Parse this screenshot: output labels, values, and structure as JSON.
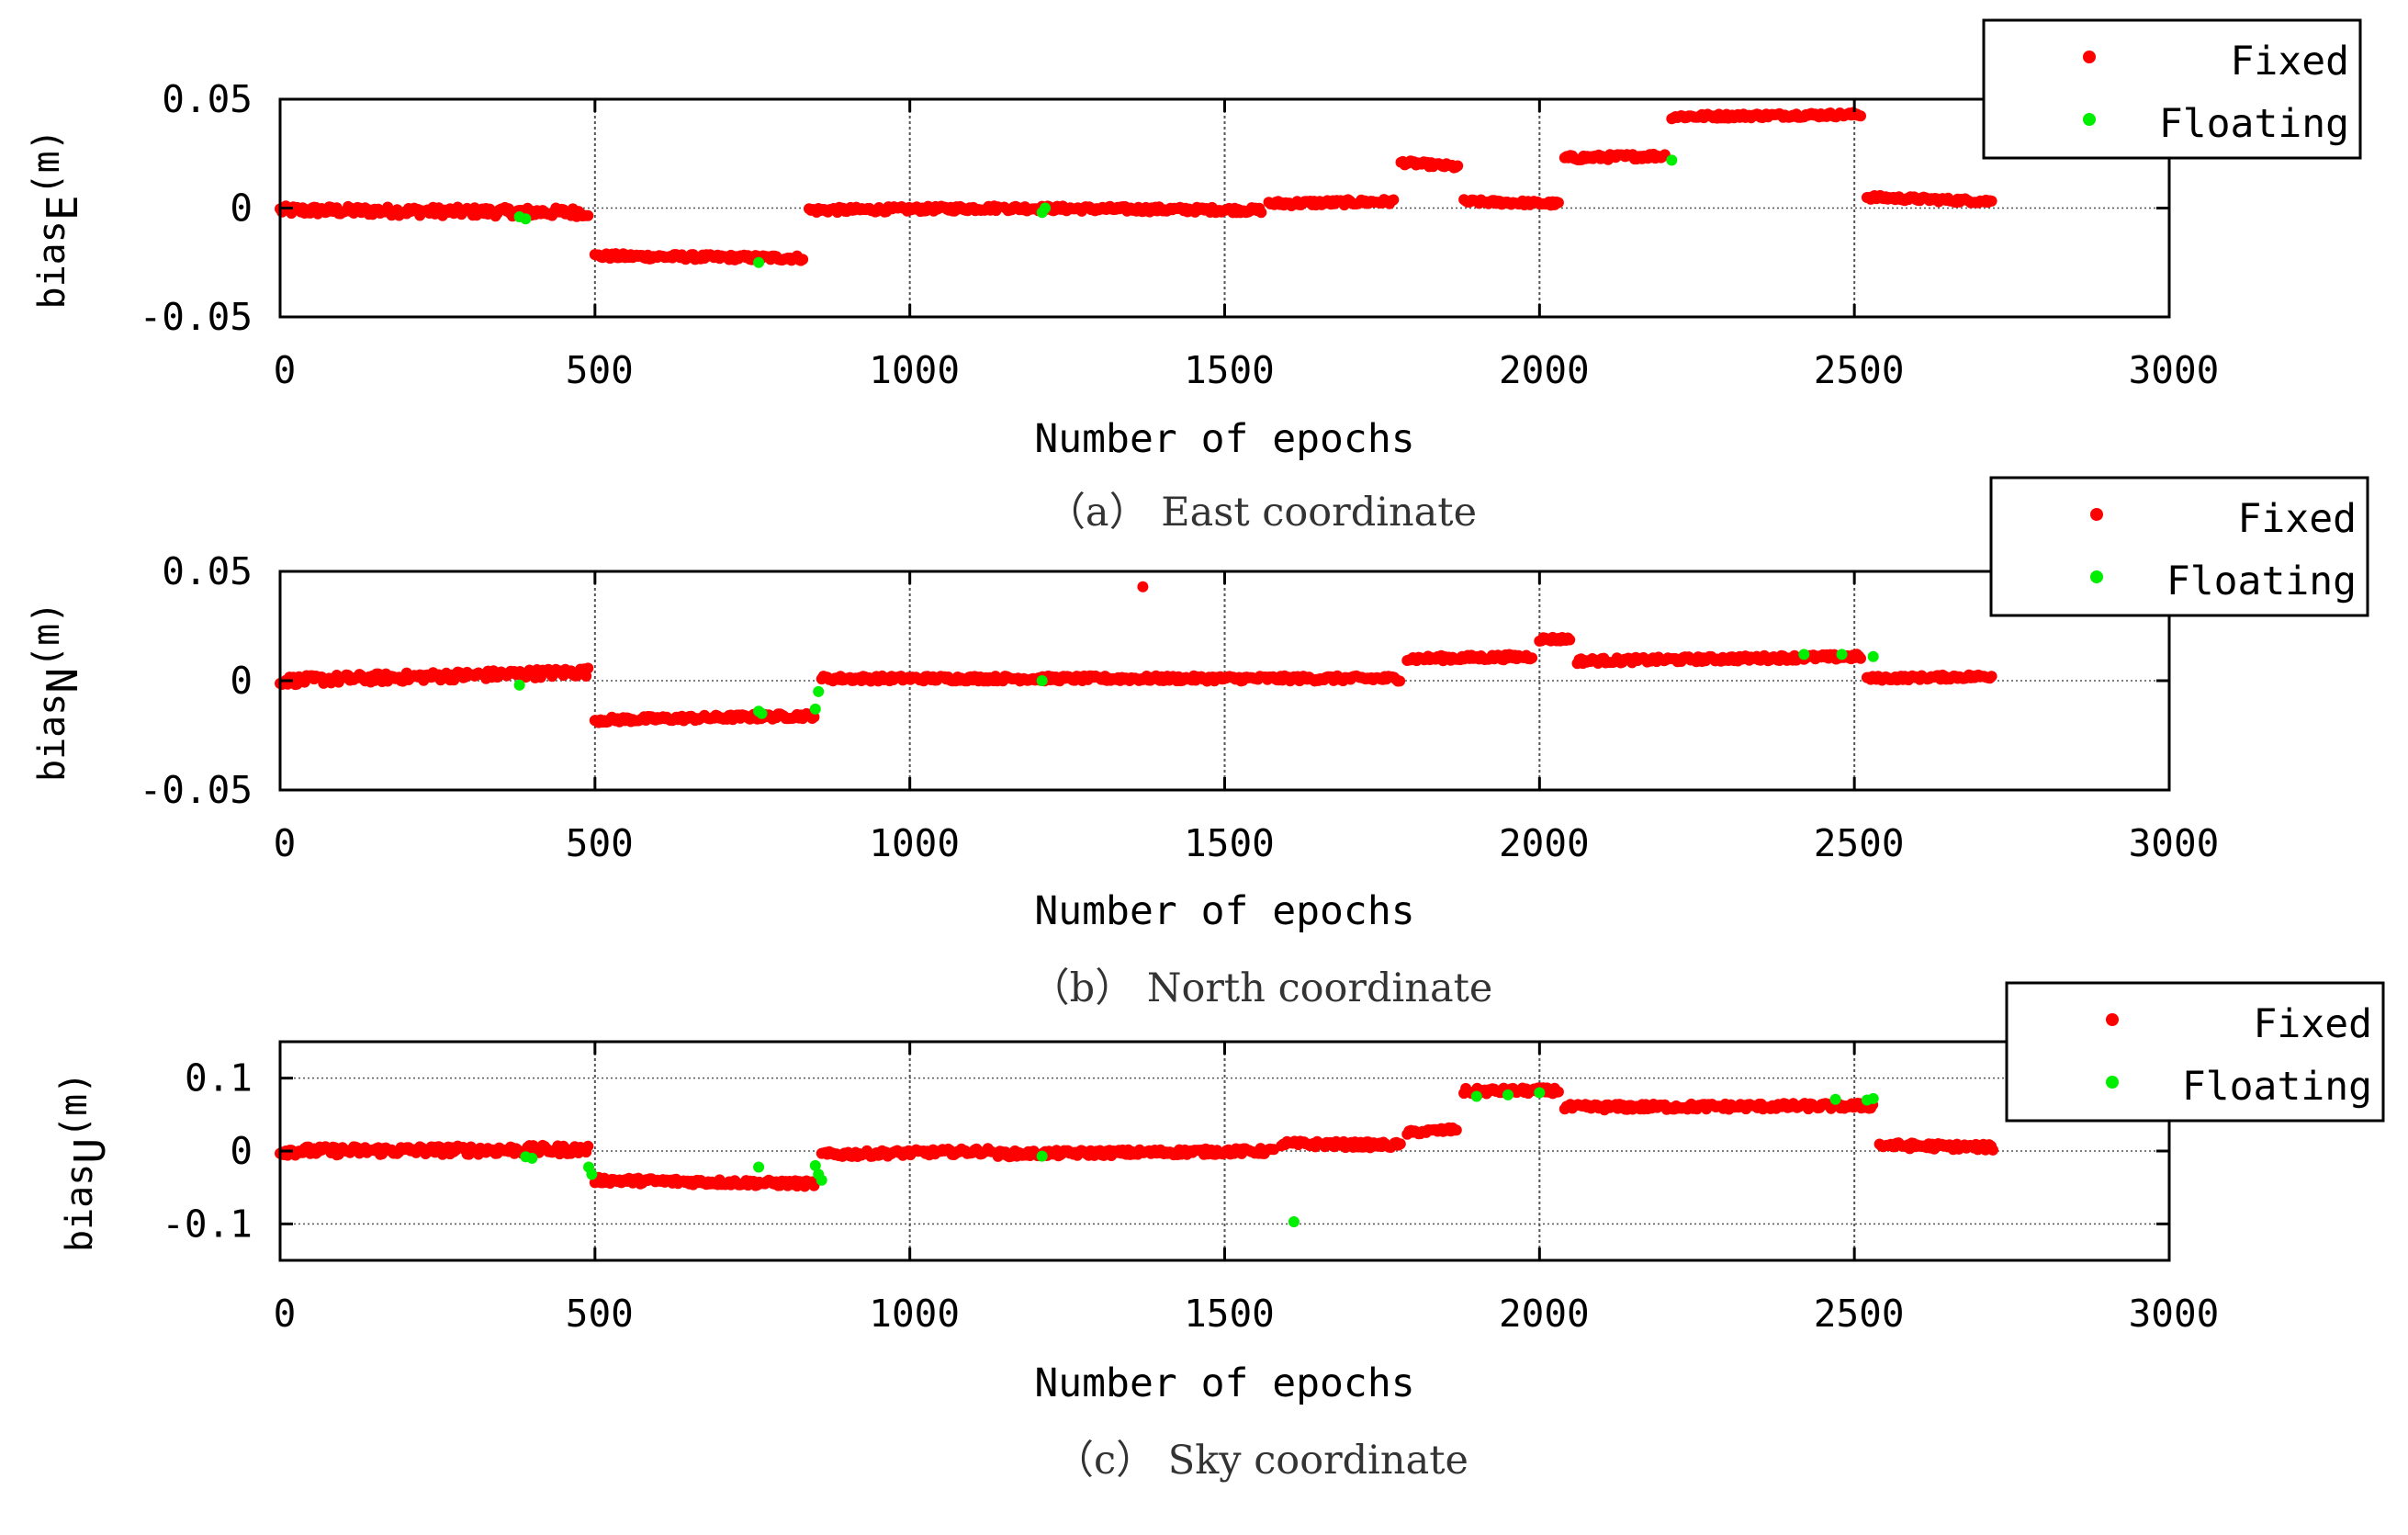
{
  "chart_data": [
    {
      "type": "scatter",
      "id": "east",
      "caption": "（a） East coordinate",
      "xlabel": "Number of epochs",
      "ylabel_prefix": "bias",
      "ylabel_sub": "E",
      "ylabel_unit": "(m)",
      "xlim": [
        0,
        3000
      ],
      "ylim": [
        -0.05,
        0.05
      ],
      "xticks": [
        0,
        500,
        1000,
        1500,
        2000,
        2500,
        3000
      ],
      "xtick_labels": [
        "0",
        "500",
        "1000",
        "1500",
        "2000",
        "2500",
        "3000"
      ],
      "yticks": [
        -0.05,
        0,
        0.05
      ],
      "ytick_labels": [
        "-0.05",
        "0",
        "0.05"
      ],
      "legend": [
        "Fixed",
        "Floating"
      ],
      "series": [
        {
          "name": "Fixed",
          "color": "#ff0000",
          "segments": [
            {
              "x": [
                0,
                490
              ],
              "y": [
                -0.001,
                -0.002
              ],
              "noise": 0.002
            },
            {
              "x": [
                500,
                830
              ],
              "y": [
                -0.022,
                -0.023
              ],
              "noise": 0.0012
            },
            {
              "x": [
                840,
                1140
              ],
              "y": [
                -0.001,
                0.0
              ],
              "noise": 0.0012
            },
            {
              "x": [
                1150,
                1560
              ],
              "y": [
                0.0,
                -0.001
              ],
              "noise": 0.0012
            },
            {
              "x": [
                1570,
                1770
              ],
              "y": [
                0.002,
                0.003
              ],
              "noise": 0.0012
            },
            {
              "x": [
                1780,
                1870
              ],
              "y": [
                0.021,
                0.019
              ],
              "noise": 0.001
            },
            {
              "x": [
                1880,
                2030
              ],
              "y": [
                0.003,
                0.002
              ],
              "noise": 0.001
            },
            {
              "x": [
                2040,
                2200
              ],
              "y": [
                0.023,
                0.024
              ],
              "noise": 0.0012
            },
            {
              "x": [
                2210,
                2510
              ],
              "y": [
                0.042,
                0.043
              ],
              "noise": 0.001
            },
            {
              "x": [
                2520,
                2720
              ],
              "y": [
                0.005,
                0.003
              ],
              "noise": 0.001
            }
          ]
        },
        {
          "name": "Floating",
          "color": "#00ee00",
          "x": [
            380,
            390,
            760,
            1210,
            1215,
            2210
          ],
          "y": [
            -0.004,
            -0.005,
            -0.025,
            -0.002,
            0.0,
            0.022
          ]
        }
      ]
    },
    {
      "type": "scatter",
      "id": "north",
      "caption": "（b） North coordinate",
      "xlabel": "Number of epochs",
      "ylabel_prefix": "bias",
      "ylabel_sub": "N",
      "ylabel_unit": "(m)",
      "xlim": [
        0,
        3000
      ],
      "ylim": [
        -0.05,
        0.05
      ],
      "xticks": [
        0,
        500,
        1000,
        1500,
        2000,
        2500,
        3000
      ],
      "xtick_labels": [
        "0",
        "500",
        "1000",
        "1500",
        "2000",
        "2500",
        "3000"
      ],
      "yticks": [
        -0.05,
        0,
        0.05
      ],
      "ytick_labels": [
        "-0.05",
        "0",
        "0.05"
      ],
      "legend": [
        "Fixed",
        "Floating"
      ],
      "series": [
        {
          "name": "Fixed",
          "color": "#ff0000",
          "segments": [
            {
              "x": [
                0,
                490
              ],
              "y": [
                0.0,
                0.004
              ],
              "noise": 0.002
            },
            {
              "x": [
                500,
                850
              ],
              "y": [
                -0.018,
                -0.016
              ],
              "noise": 0.0012
            },
            {
              "x": [
                860,
                1780
              ],
              "y": [
                0.001,
                0.001
              ],
              "noise": 0.0012
            },
            {
              "x": [
                1790,
                1990
              ],
              "y": [
                0.01,
                0.011
              ],
              "noise": 0.0012
            },
            {
              "x": [
                2000,
                2050
              ],
              "y": [
                0.019,
                0.019
              ],
              "noise": 0.001
            },
            {
              "x": [
                2060,
                2510
              ],
              "y": [
                0.009,
                0.011
              ],
              "noise": 0.0012
            },
            {
              "x": [
                2520,
                2720
              ],
              "y": [
                0.001,
                0.002
              ],
              "noise": 0.001
            }
          ],
          "x": [
            1370
          ],
          "y": [
            0.043
          ]
        },
        {
          "name": "Floating",
          "color": "#00ee00",
          "x": [
            380,
            760,
            765,
            850,
            855,
            1210,
            2420,
            2480,
            2530
          ],
          "y": [
            -0.002,
            -0.014,
            -0.015,
            -0.013,
            -0.005,
            0.0,
            0.012,
            0.012,
            0.011
          ]
        }
      ]
    },
    {
      "type": "scatter",
      "id": "sky",
      "caption": "（c） Sky coordinate",
      "xlabel": "Number of epochs",
      "ylabel_prefix": "bias",
      "ylabel_sub": "U",
      "ylabel_unit": "(m)",
      "xlim": [
        0,
        3000
      ],
      "ylim": [
        -0.15,
        0.15
      ],
      "xticks": [
        0,
        500,
        1000,
        1500,
        2000,
        2500,
        3000
      ],
      "xtick_labels": [
        "0",
        "500",
        "1000",
        "1500",
        "2000",
        "2500",
        "3000"
      ],
      "yticks": [
        -0.1,
        0,
        0.1
      ],
      "ytick_labels": [
        "-0.1",
        "0",
        "0.1"
      ],
      "legend": [
        "Fixed",
        "Floating"
      ],
      "series": [
        {
          "name": "Fixed",
          "color": "#ff0000",
          "segments": [
            {
              "x": [
                0,
                490
              ],
              "y": [
                0.0,
                0.002
              ],
              "noise": 0.006
            },
            {
              "x": [
                500,
                850
              ],
              "y": [
                -0.04,
                -0.045
              ],
              "noise": 0.004
            },
            {
              "x": [
                860,
                1130
              ],
              "y": [
                -0.005,
                0.0
              ],
              "noise": 0.004
            },
            {
              "x": [
                1140,
                1580
              ],
              "y": [
                -0.004,
                0.0
              ],
              "noise": 0.004
            },
            {
              "x": [
                1590,
                1780
              ],
              "y": [
                0.01,
                0.008
              ],
              "noise": 0.004
            },
            {
              "x": [
                1790,
                1870
              ],
              "y": [
                0.025,
                0.03
              ],
              "noise": 0.003
            },
            {
              "x": [
                1880,
                2030
              ],
              "y": [
                0.082,
                0.083
              ],
              "noise": 0.004
            },
            {
              "x": [
                2040,
                2530
              ],
              "y": [
                0.06,
                0.062
              ],
              "noise": 0.004
            },
            {
              "x": [
                2540,
                2720
              ],
              "y": [
                0.008,
                0.005
              ],
              "noise": 0.004
            }
          ]
        },
        {
          "name": "Floating",
          "color": "#00ee00",
          "x": [
            390,
            400,
            490,
            495,
            760,
            850,
            855,
            860,
            1210,
            1610,
            1900,
            1950,
            2000,
            2470,
            2520,
            2530
          ],
          "y": [
            -0.008,
            -0.01,
            -0.022,
            -0.032,
            -0.022,
            -0.02,
            -0.032,
            -0.04,
            -0.007,
            -0.097,
            0.075,
            0.077,
            0.08,
            0.071,
            0.07,
            0.072
          ]
        }
      ]
    }
  ]
}
